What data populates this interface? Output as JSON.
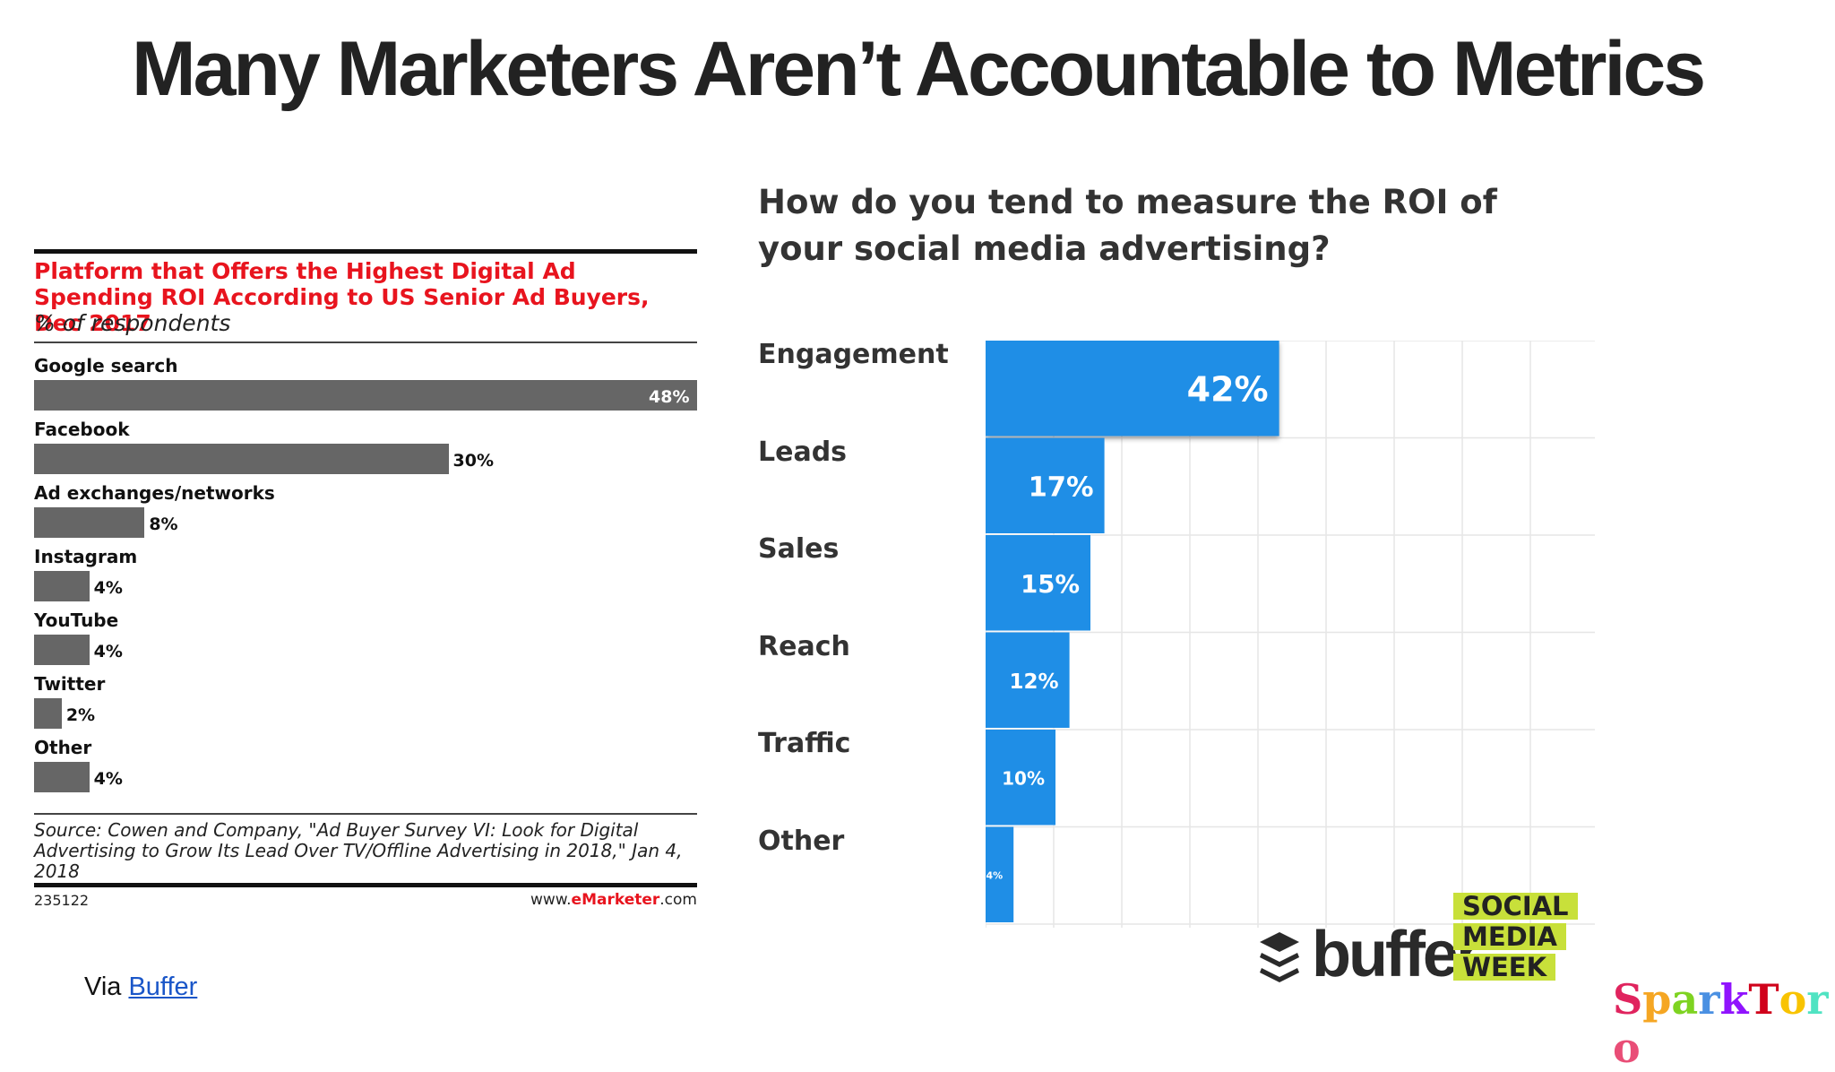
{
  "slide_title": "Many Marketers Aren’t Accountable to Metrics",
  "via": {
    "prefix": "Via",
    "link_text": "Buffer"
  },
  "logos": {
    "buffer": "buffer",
    "smw": [
      "SOCIAL",
      "MEDIA",
      "WEEK"
    ],
    "sparktoro": "SparkToro"
  },
  "colors": {
    "emarketer_title": "#e8141e",
    "emarketer_bar": "#666666",
    "buffer_bar": "#1f8ee6",
    "smw_green": "#c8e03a"
  },
  "chart_data": [
    {
      "type": "bar",
      "orientation": "horizontal",
      "title": "Platform that Offers the Highest Digital Ad Spending ROI According to US Senior Ad Buyers, Dec 2017",
      "subtitle": "% of respondents",
      "categories": [
        "Google search",
        "Facebook",
        "Ad exchanges/networks",
        "Instagram",
        "YouTube",
        "Twitter",
        "Other"
      ],
      "values": [
        48,
        30,
        8,
        4,
        4,
        2,
        4
      ],
      "value_labels": [
        "48%",
        "30%",
        "8%",
        "4%",
        "4%",
        "2%",
        "4%"
      ],
      "xlim": [
        0,
        48
      ],
      "source": "Source: Cowen and Company, \"Ad Buyer Survey VI: Look for Digital Advertising to Grow Its Lead Over TV/Offline Advertising in 2018,\" Jan 4, 2018",
      "chart_id": "235122",
      "brand": {
        "pre": "www.",
        "bold": "eMarketer",
        "post": ".com"
      }
    },
    {
      "type": "bar",
      "orientation": "horizontal",
      "title": "How do you tend to measure the ROI of your social media advertising?",
      "categories": [
        "Engagement",
        "Leads",
        "Sales",
        "Reach",
        "Traffic",
        "Other"
      ],
      "values": [
        42,
        17,
        15,
        12,
        10,
        4
      ],
      "value_labels": [
        "42%",
        "17%",
        "15%",
        "12%",
        "10%",
        "4%"
      ],
      "xlim": [
        0,
        88
      ],
      "grid": true
    }
  ]
}
